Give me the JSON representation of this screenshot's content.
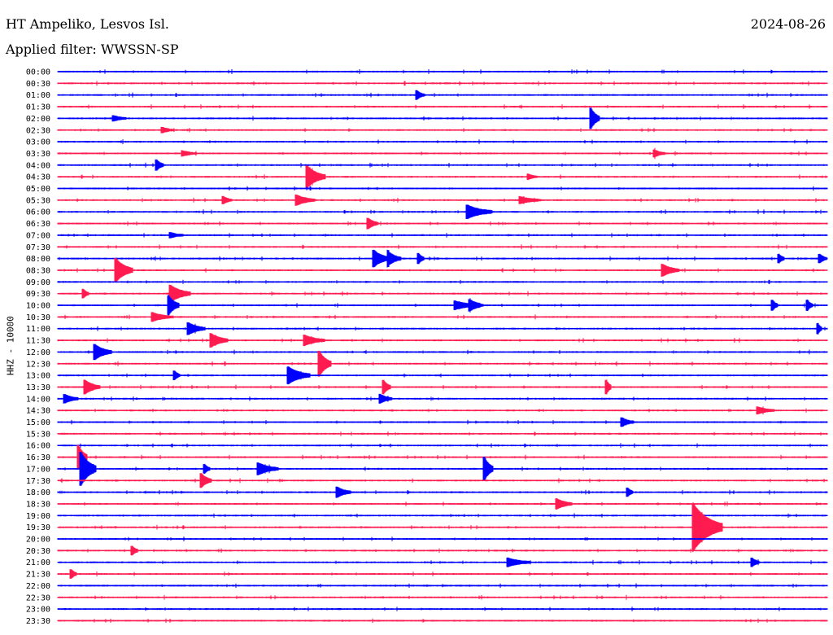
{
  "header": {
    "station": "HT Ampeliko, Lesvos Isl.",
    "date": "2024-08-26",
    "filter_label": "Applied filter: WWSSN-SP"
  },
  "ylabel": "HHZ - 10000",
  "colors": {
    "even": "#0000ff",
    "odd": "#ff1b4f"
  },
  "rows": [
    "00:00",
    "00:30",
    "01:00",
    "01:30",
    "02:00",
    "02:30",
    "03:00",
    "03:30",
    "04:00",
    "04:30",
    "05:00",
    "05:30",
    "06:00",
    "06:30",
    "07:00",
    "07:30",
    "08:00",
    "08:30",
    "09:00",
    "09:30",
    "10:00",
    "10:30",
    "11:00",
    "11:30",
    "12:00",
    "12:30",
    "13:00",
    "13:30",
    "14:00",
    "14:30",
    "15:00",
    "15:30",
    "16:00",
    "16:30",
    "17:00",
    "17:30",
    "18:00",
    "18:30",
    "19:00",
    "19:30",
    "20:00",
    "20:30",
    "21:00",
    "21:30",
    "22:00",
    "22:30",
    "23:00",
    "23:30"
  ]
}
